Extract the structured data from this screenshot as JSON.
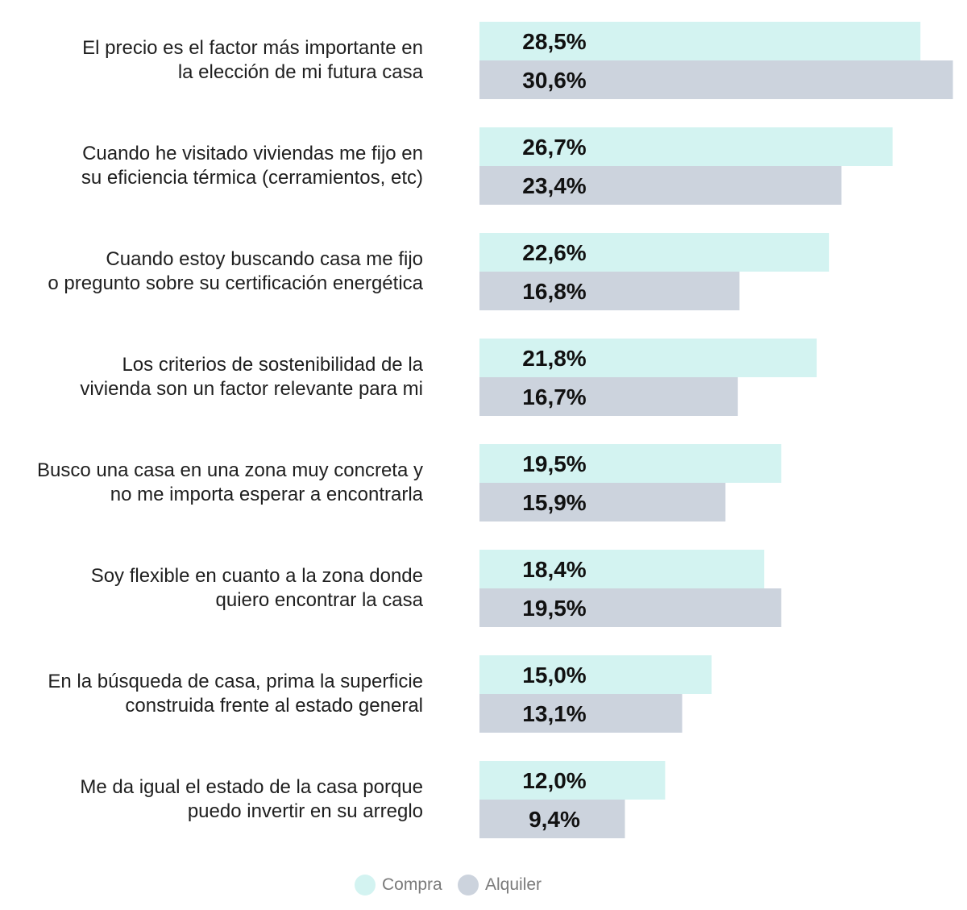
{
  "chart_data": {
    "type": "bar",
    "orientation": "horizontal",
    "categories": [
      [
        "El precio es el factor más importante en",
        "la elección de mi futura casa"
      ],
      [
        "Cuando he visitado viviendas me fijo en",
        "su eficiencia térmica (cerramientos, etc)"
      ],
      [
        "Cuando estoy buscando casa me fijo",
        "o pregunto sobre su certificación energética"
      ],
      [
        "Los criterios de sostenibilidad de la",
        "vivienda son un factor relevante para mi"
      ],
      [
        "Busco una casa en una zona muy concreta y",
        "no me importa esperar a encontrarla"
      ],
      [
        "Soy flexible en cuanto a la zona donde",
        "quiero encontrar la casa"
      ],
      [
        "En la búsqueda de casa, prima la superficie",
        "construida frente al estado general"
      ],
      [
        "Me da igual el estado de la casa porque",
        "puedo invertir en su arreglo"
      ]
    ],
    "series": [
      {
        "name": "Compra",
        "color": "#d3f3f1",
        "values": [
          28.5,
          26.7,
          22.6,
          21.8,
          19.5,
          18.4,
          15.0,
          12.0
        ],
        "labels": [
          "28,5%",
          "26,7%",
          "22,6%",
          "21,8%",
          "19,5%",
          "18,4%",
          "15,0%",
          "12,0%"
        ]
      },
      {
        "name": "Alquiler",
        "color": "#ccd3dd",
        "values": [
          30.6,
          23.4,
          16.8,
          16.7,
          15.9,
          19.5,
          13.1,
          9.4
        ],
        "labels": [
          "30,6%",
          "23,4%",
          "16,8%",
          "16,7%",
          "15,9%",
          "19,5%",
          "13,1%",
          "9,4%"
        ]
      }
    ],
    "grid": false,
    "legend_position": "bottom"
  }
}
